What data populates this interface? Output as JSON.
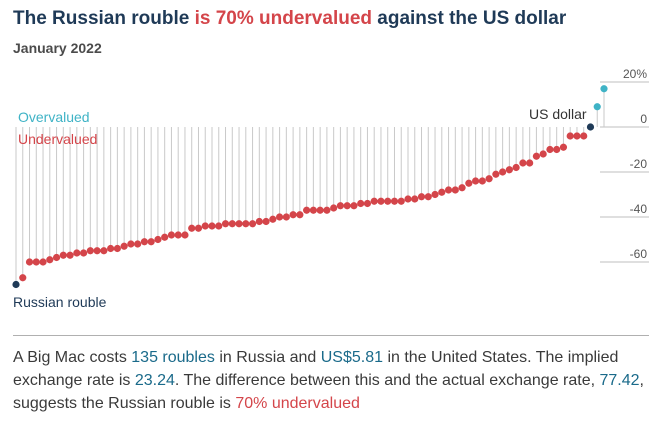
{
  "title": {
    "part1": "The Russian rouble ",
    "highlight": "is 70% undervalued",
    "part2": " against the US dollar"
  },
  "subtitle": "January 2022",
  "chart_data": {
    "type": "scatter",
    "title": "The Russian rouble is 70% undervalued against the US dollar",
    "subtitle": "January 2022",
    "ylim": [
      -75,
      25
    ],
    "yticks": [
      20,
      0,
      -20,
      -40,
      -60
    ],
    "ytick_labels": [
      "20%",
      "0",
      "-20",
      "-40",
      "-60"
    ],
    "labels": {
      "overvalued": "Overvalued",
      "undervalued": "Undervalued",
      "us_dollar": "US dollar",
      "russian_rouble": "Russian rouble"
    },
    "values": [
      -70,
      -67,
      -60,
      -60,
      -60,
      -59,
      -58,
      -57,
      -57,
      -56,
      -56,
      -55,
      -55,
      -55,
      -54,
      -54,
      -53,
      -52,
      -52,
      -51,
      -51,
      -50,
      -49,
      -48,
      -48,
      -48,
      -45,
      -45,
      -44,
      -44,
      -44,
      -43,
      -43,
      -43,
      -43,
      -43,
      -42,
      -42,
      -41,
      -40,
      -40,
      -39,
      -39,
      -37,
      -37,
      -37,
      -37,
      -36,
      -35,
      -35,
      -35,
      -34,
      -34,
      -33,
      -33,
      -33,
      -33,
      -33,
      -32,
      -32,
      -31,
      -31,
      -30,
      -29,
      -28,
      -28,
      -27,
      -25,
      -24,
      -24,
      -23,
      -21,
      -20,
      -19,
      -18,
      -16,
      -16,
      -13,
      -12,
      -10,
      -10,
      -9,
      -4,
      -4,
      -4,
      0,
      9,
      17
    ],
    "colors": {
      "undervalued": "#d4454a",
      "overvalued": "#3fb3c6",
      "base": "#1f3a57",
      "gridline": "#bfbfbf",
      "stem": "#c9c9c9"
    }
  },
  "caption": {
    "t1": "A Big Mac costs ",
    "price_local": "135 roubles",
    "t2": " in Russia and ",
    "price_us": "US$5.81",
    "t3": " in the United States. The implied exchange rate is ",
    "implied_rate": "23.24",
    "t4": ". The difference between this and the actual exchange rate, ",
    "actual_rate": "77.42",
    "t5": ", suggests the Russian rouble is ",
    "valuation": "70% undervalued"
  }
}
